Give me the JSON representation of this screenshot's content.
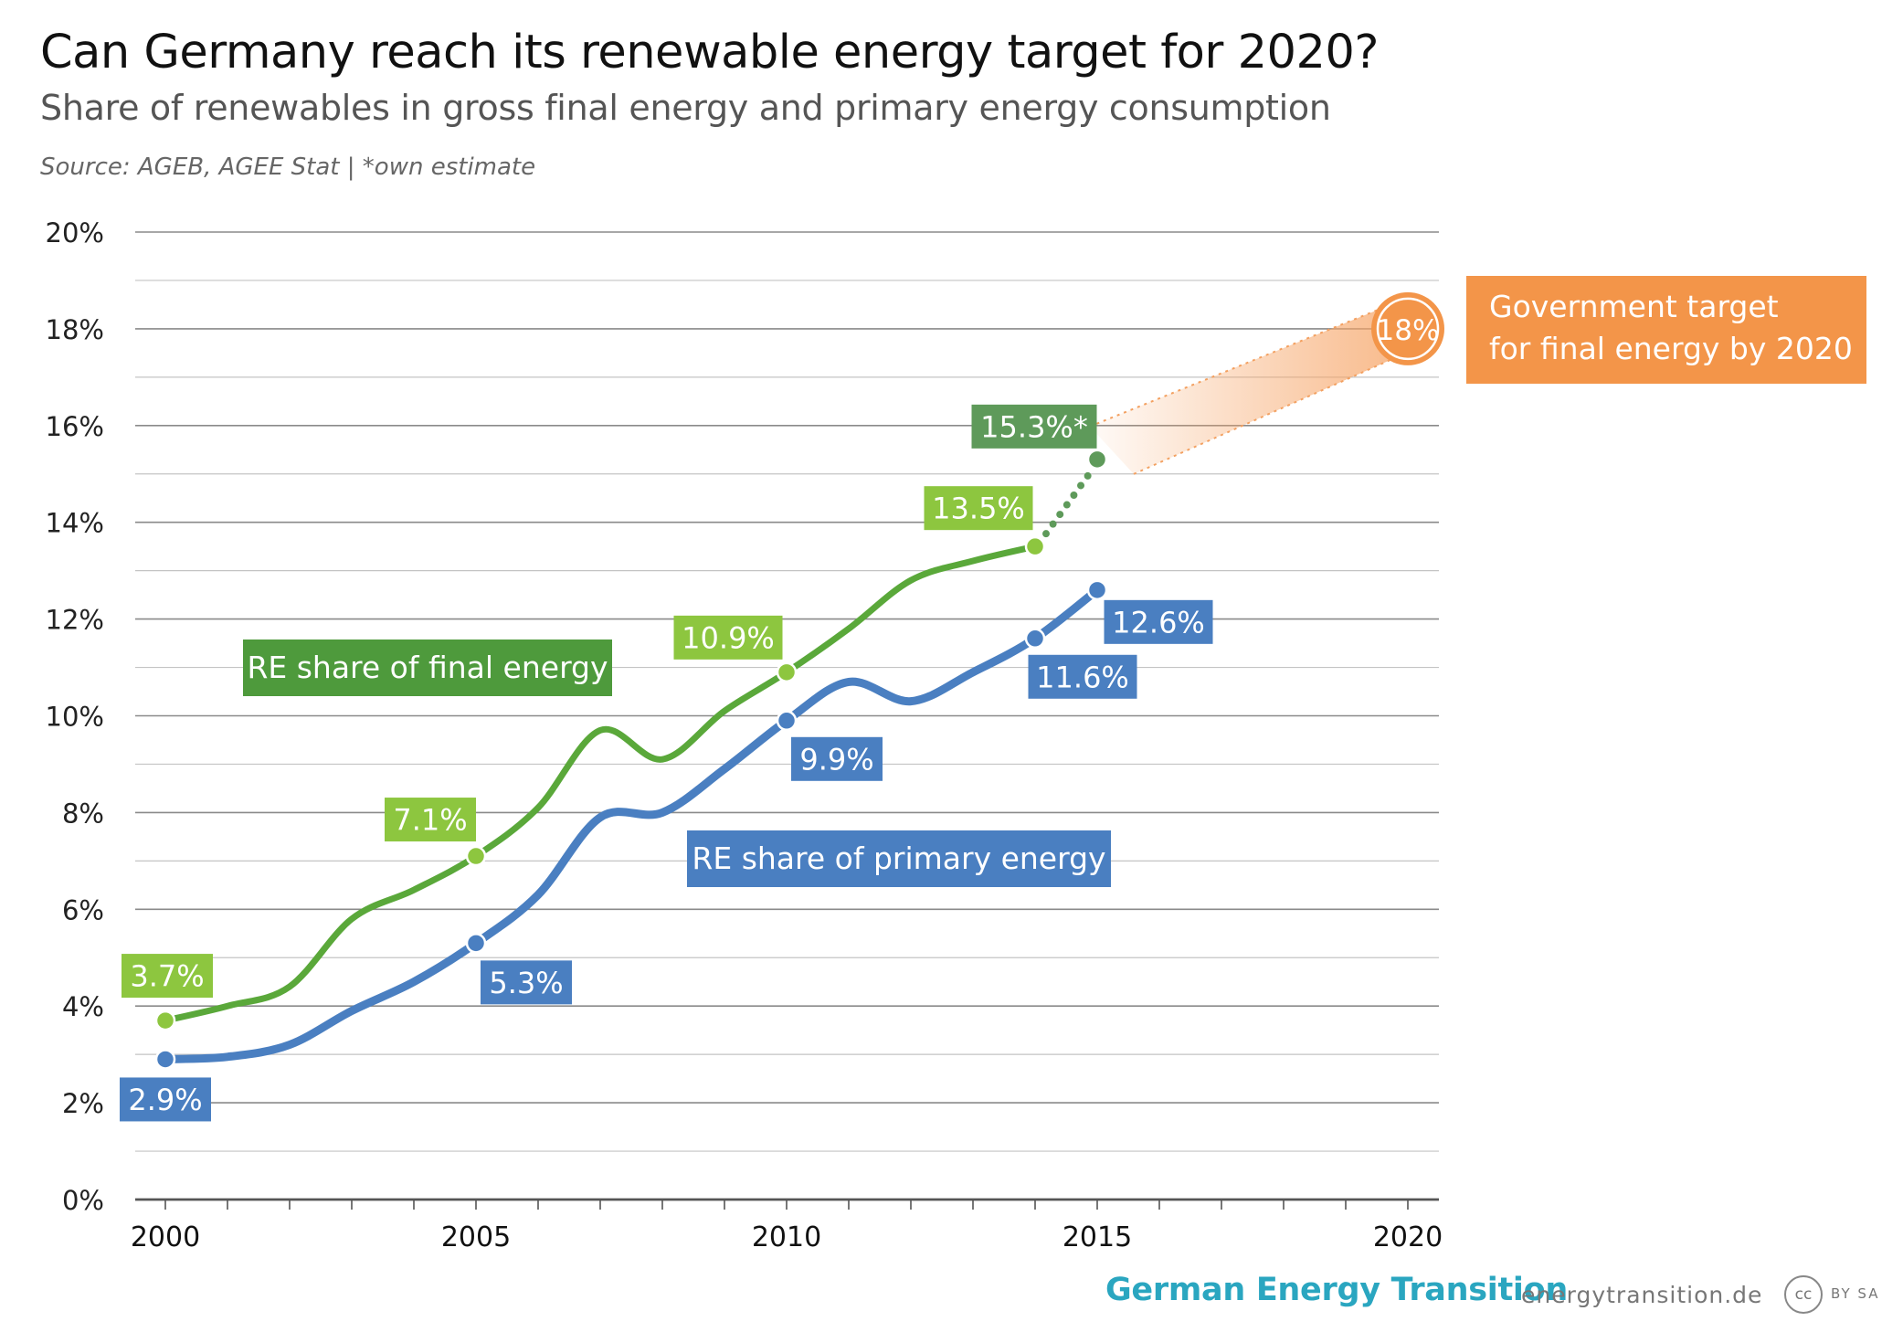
{
  "header": {
    "title": "Can Germany reach its renewable energy target for 2020?",
    "subtitle": "Share of renewables in gross final energy and primary energy consumption",
    "source": "Source: AGEB, AGEE Stat  |  *own estimate"
  },
  "footer": {
    "brand": "German Energy Transition",
    "url": "energytransition.de",
    "cc_icon": "cc",
    "cc_text": "BY SA"
  },
  "colors": {
    "final_series": "#5aa83a",
    "final_label_bg": "#4e9a3c",
    "final_point": "#8dc63f",
    "final_estimate": "#5e9a5a",
    "primary_series": "#4a7fc1",
    "primary_label_bg": "#4a7fc1",
    "target": "#f39549"
  },
  "chart_data": {
    "type": "line",
    "xlim": [
      2000,
      2020
    ],
    "ylim": [
      0,
      20
    ],
    "x_ticks": [
      "2000",
      "2005",
      "2010",
      "2015",
      "2020"
    ],
    "y_ticks": [
      "0%",
      "2%",
      "4%",
      "6%",
      "8%",
      "10%",
      "12%",
      "14%",
      "16%",
      "18%",
      "20%"
    ],
    "grid": true,
    "series": [
      {
        "name": "RE share of final energy",
        "key": "final",
        "x": [
          2000,
          2001,
          2002,
          2003,
          2004,
          2005,
          2006,
          2007,
          2008,
          2009,
          2010,
          2011,
          2012,
          2013,
          2014
        ],
        "values": [
          3.7,
          4.0,
          4.4,
          5.8,
          6.4,
          7.1,
          8.1,
          9.7,
          9.1,
          10.1,
          10.9,
          11.8,
          12.8,
          13.2,
          13.5
        ],
        "estimate": {
          "x": [
            2014,
            2015
          ],
          "values": [
            13.5,
            15.3
          ]
        },
        "labeled_points": [
          {
            "x": 2000,
            "y": 3.7,
            "text": "3.7%"
          },
          {
            "x": 2005,
            "y": 7.1,
            "text": "7.1%"
          },
          {
            "x": 2010,
            "y": 10.9,
            "text": "10.9%"
          },
          {
            "x": 2014,
            "y": 13.5,
            "text": "13.5%"
          },
          {
            "x": 2015,
            "y": 15.3,
            "text": "15.3%*"
          }
        ]
      },
      {
        "name": "RE share of primary energy",
        "key": "primary",
        "x": [
          2000,
          2001,
          2002,
          2003,
          2004,
          2005,
          2006,
          2007,
          2008,
          2009,
          2010,
          2011,
          2012,
          2013,
          2014,
          2015
        ],
        "values": [
          2.9,
          2.95,
          3.2,
          3.9,
          4.5,
          5.3,
          6.3,
          7.9,
          8.0,
          8.9,
          9.9,
          10.7,
          10.3,
          10.9,
          11.6,
          12.6
        ],
        "labeled_points": [
          {
            "x": 2000,
            "y": 2.9,
            "text": "2.9%"
          },
          {
            "x": 2005,
            "y": 5.3,
            "text": "5.3%"
          },
          {
            "x": 2010,
            "y": 9.9,
            "text": "9.9%"
          },
          {
            "x": 2014,
            "y": 11.6,
            "text": "11.6%"
          },
          {
            "x": 2015,
            "y": 12.6,
            "text": "12.6%"
          }
        ]
      }
    ],
    "target": {
      "x": 2020,
      "y": 18,
      "text": "18%",
      "label_lines": [
        "Government target",
        "for final energy by 2020"
      ]
    }
  }
}
